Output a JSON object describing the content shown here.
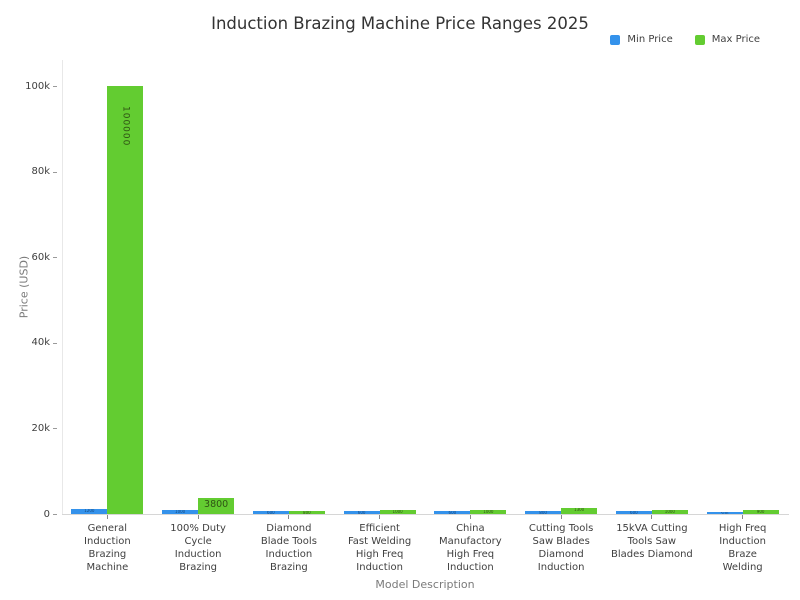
{
  "title": "Induction Brazing Machine Price Ranges 2025",
  "legend": {
    "items": [
      {
        "label": "Min Price",
        "color": "#3492EB"
      },
      {
        "label": "Max Price",
        "color": "#63CC31"
      }
    ]
  },
  "axes": {
    "y_title": "Price (USD)",
    "x_title": "Model Description"
  },
  "chart_data": {
    "type": "bar",
    "title": "Induction Brazing Machine Price Ranges 2025",
    "xlabel": "Model Description",
    "ylabel": "Price (USD)",
    "ylim": [
      0,
      100000
    ],
    "ytick_values": [
      0,
      20000,
      40000,
      60000,
      80000,
      100000
    ],
    "ytick_labels": [
      "0",
      "20k",
      "40k",
      "60k",
      "80k",
      "100k"
    ],
    "grid": false,
    "legend_position": "top-right",
    "categories": [
      "General\nInduction\nBrazing\nMachine",
      "100% Duty\nCycle\nInduction\nBrazing",
      "Diamond\nBlade Tools\nInduction\nBrazing",
      "Efficient\nFast Welding\nHigh Freq\nInduction",
      "China\nManufactory\nHigh Freq\nInduction",
      "Cutting Tools\nSaw Blades\nDiamond\nInduction",
      "15kVA Cutting\nTools Saw\nBlades Diamond",
      "High Freq\nInduction\nBraze\nWelding"
    ],
    "series": [
      {
        "name": "Min Price",
        "color": "#3492EB",
        "label_color": "#14487e",
        "values": [
          1200,
          1000,
          600,
          600,
          600,
          800,
          600,
          500
        ]
      },
      {
        "name": "Max Price",
        "color": "#63CC31",
        "label_color": "#2f5414",
        "values": [
          100000,
          3800,
          800,
          1000,
          1000,
          1300,
          1000,
          900
        ]
      }
    ],
    "visible_bar_labels": [
      "100000",
      "3800"
    ]
  }
}
